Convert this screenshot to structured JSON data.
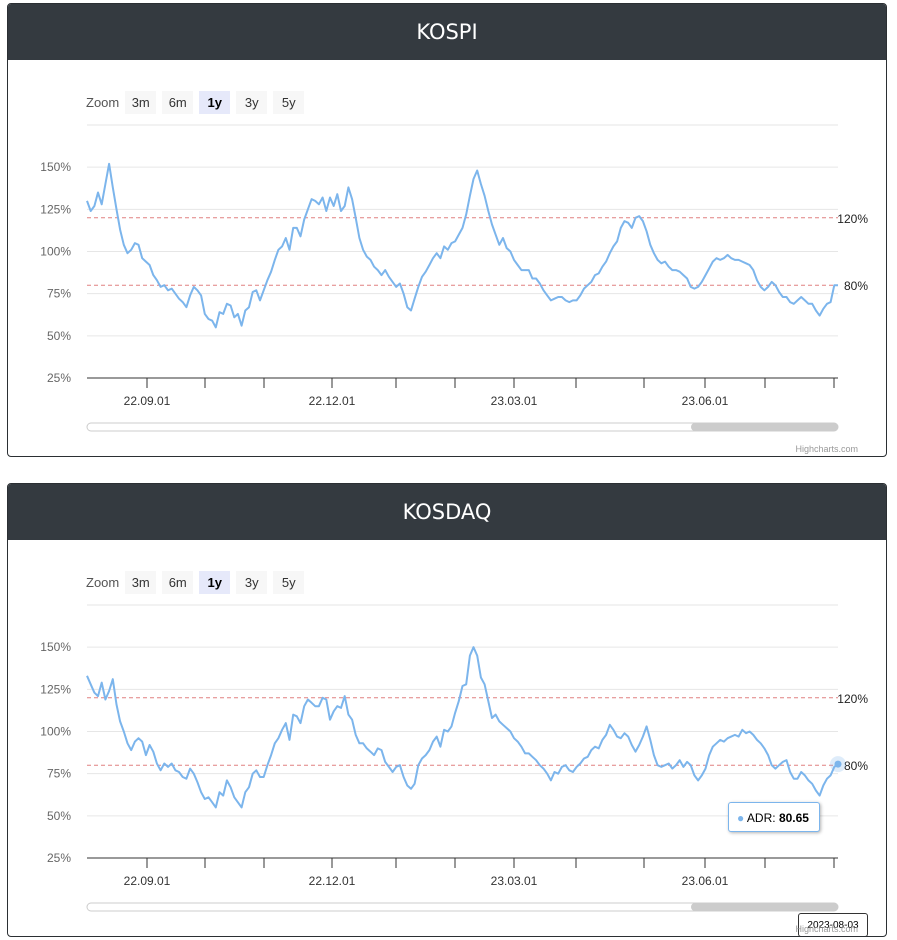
{
  "zoom": {
    "label": "Zoom",
    "buttons": [
      "3m",
      "6m",
      "1y",
      "3y",
      "5y"
    ],
    "selected": "1y"
  },
  "credit": "Highcharts.com",
  "charts": [
    {
      "title": "KOSPI",
      "tooltip": null,
      "date_tip": null
    },
    {
      "title": "KOSDAQ",
      "tooltip": {
        "series": "ADR",
        "value": "80.65"
      },
      "date_tip": "2023-08-03"
    }
  ],
  "colors": {
    "line": "#7cb5ec",
    "plotline": "#e08080",
    "header": "#343a40"
  },
  "chart_data": [
    {
      "type": "line",
      "title": "KOSPI",
      "yticks": [
        "25%",
        "50%",
        "75%",
        "100%",
        "125%",
        "150%"
      ],
      "ylim": [
        25,
        175
      ],
      "xticks": [
        "22.09.01",
        "22.12.01",
        "23.03.01",
        "23.06.01"
      ],
      "plot_lines": [
        {
          "value": 120,
          "label": "120%"
        },
        {
          "value": 80,
          "label": "80%"
        }
      ],
      "series": [
        {
          "name": "ADR",
          "values": [
            130,
            124,
            127,
            135,
            128,
            140,
            152,
            138,
            125,
            113,
            104,
            99,
            101,
            105,
            104,
            96,
            94,
            92,
            86,
            83,
            79,
            80,
            77,
            78,
            75,
            72,
            70,
            67,
            74,
            79,
            77,
            74,
            63,
            60,
            59,
            55,
            64,
            63,
            69,
            68,
            61,
            63,
            56,
            65,
            67,
            76,
            77,
            71,
            77,
            83,
            88,
            95,
            101,
            103,
            108,
            101,
            114,
            114,
            109,
            119,
            125,
            131,
            130,
            128,
            132,
            124,
            132,
            127,
            134,
            124,
            127,
            138,
            131,
            120,
            108,
            101,
            97,
            95,
            91,
            89,
            86,
            89,
            85,
            82,
            79,
            81,
            75,
            67,
            65,
            72,
            79,
            85,
            88,
            92,
            96,
            99,
            96,
            103,
            101,
            105,
            106,
            110,
            114,
            122,
            133,
            143,
            148,
            140,
            133,
            124,
            116,
            110,
            104,
            108,
            102,
            100,
            95,
            92,
            89,
            89,
            89,
            84,
            84,
            81,
            77,
            74,
            71,
            72,
            73,
            73,
            71,
            70,
            71,
            71,
            74,
            78,
            80,
            82,
            86,
            87,
            91,
            94,
            99,
            103,
            106,
            114,
            118,
            117,
            114,
            120,
            121,
            118,
            112,
            104,
            99,
            95,
            93,
            94,
            91,
            89,
            89,
            88,
            86,
            84,
            79,
            78,
            79,
            82,
            86,
            90,
            94,
            96,
            95,
            96,
            98,
            96,
            95,
            95,
            94,
            93,
            92,
            89,
            83,
            79,
            77,
            79,
            82,
            80,
            76,
            73,
            73,
            70,
            69,
            71,
            73,
            71,
            69,
            69,
            65,
            62,
            66,
            69,
            70,
            80,
            80
          ]
        }
      ]
    },
    {
      "type": "line",
      "title": "KOSDAQ",
      "yticks": [
        "25%",
        "50%",
        "75%",
        "100%",
        "125%",
        "150%"
      ],
      "ylim": [
        25,
        175
      ],
      "xticks": [
        "22.09.01",
        "22.12.01",
        "23.03.01",
        "23.06.01"
      ],
      "plot_lines": [
        {
          "value": 120,
          "label": "120%"
        },
        {
          "value": 80,
          "label": "80%"
        }
      ],
      "series": [
        {
          "name": "ADR",
          "values": [
            133,
            128,
            123,
            121,
            129,
            119,
            124,
            131,
            116,
            106,
            100,
            93,
            89,
            94,
            96,
            94,
            86,
            92,
            88,
            81,
            77,
            81,
            79,
            81,
            77,
            76,
            73,
            72,
            78,
            75,
            70,
            64,
            60,
            61,
            58,
            55,
            64,
            62,
            71,
            67,
            61,
            58,
            55,
            64,
            67,
            75,
            77,
            73,
            73,
            80,
            86,
            93,
            96,
            101,
            105,
            95,
            110,
            109,
            105,
            115,
            119,
            117,
            115,
            115,
            120,
            119,
            107,
            112,
            115,
            114,
            121,
            110,
            107,
            98,
            93,
            93,
            90,
            88,
            86,
            90,
            89,
            82,
            79,
            76,
            79,
            80,
            73,
            68,
            66,
            69,
            80,
            84,
            86,
            89,
            94,
            97,
            91,
            101,
            100,
            103,
            111,
            118,
            127,
            128,
            145,
            150,
            145,
            132,
            128,
            118,
            108,
            110,
            106,
            104,
            102,
            100,
            96,
            94,
            91,
            87,
            87,
            85,
            83,
            80,
            78,
            75,
            71,
            76,
            75,
            79,
            80,
            77,
            76,
            79,
            81,
            84,
            85,
            89,
            91,
            90,
            95,
            98,
            104,
            101,
            97,
            96,
            99,
            97,
            92,
            88,
            92,
            97,
            103,
            95,
            86,
            80,
            79,
            80,
            81,
            78,
            80,
            83,
            79,
            82,
            80,
            74,
            71,
            74,
            78,
            86,
            91,
            93,
            95,
            94,
            96,
            97,
            98,
            97,
            101,
            99,
            100,
            98,
            95,
            93,
            90,
            86,
            80,
            78,
            80,
            82,
            83,
            76,
            72,
            72,
            76,
            74,
            71,
            69,
            65,
            62,
            68,
            72,
            74,
            79,
            80.65
          ]
        }
      ]
    }
  ]
}
